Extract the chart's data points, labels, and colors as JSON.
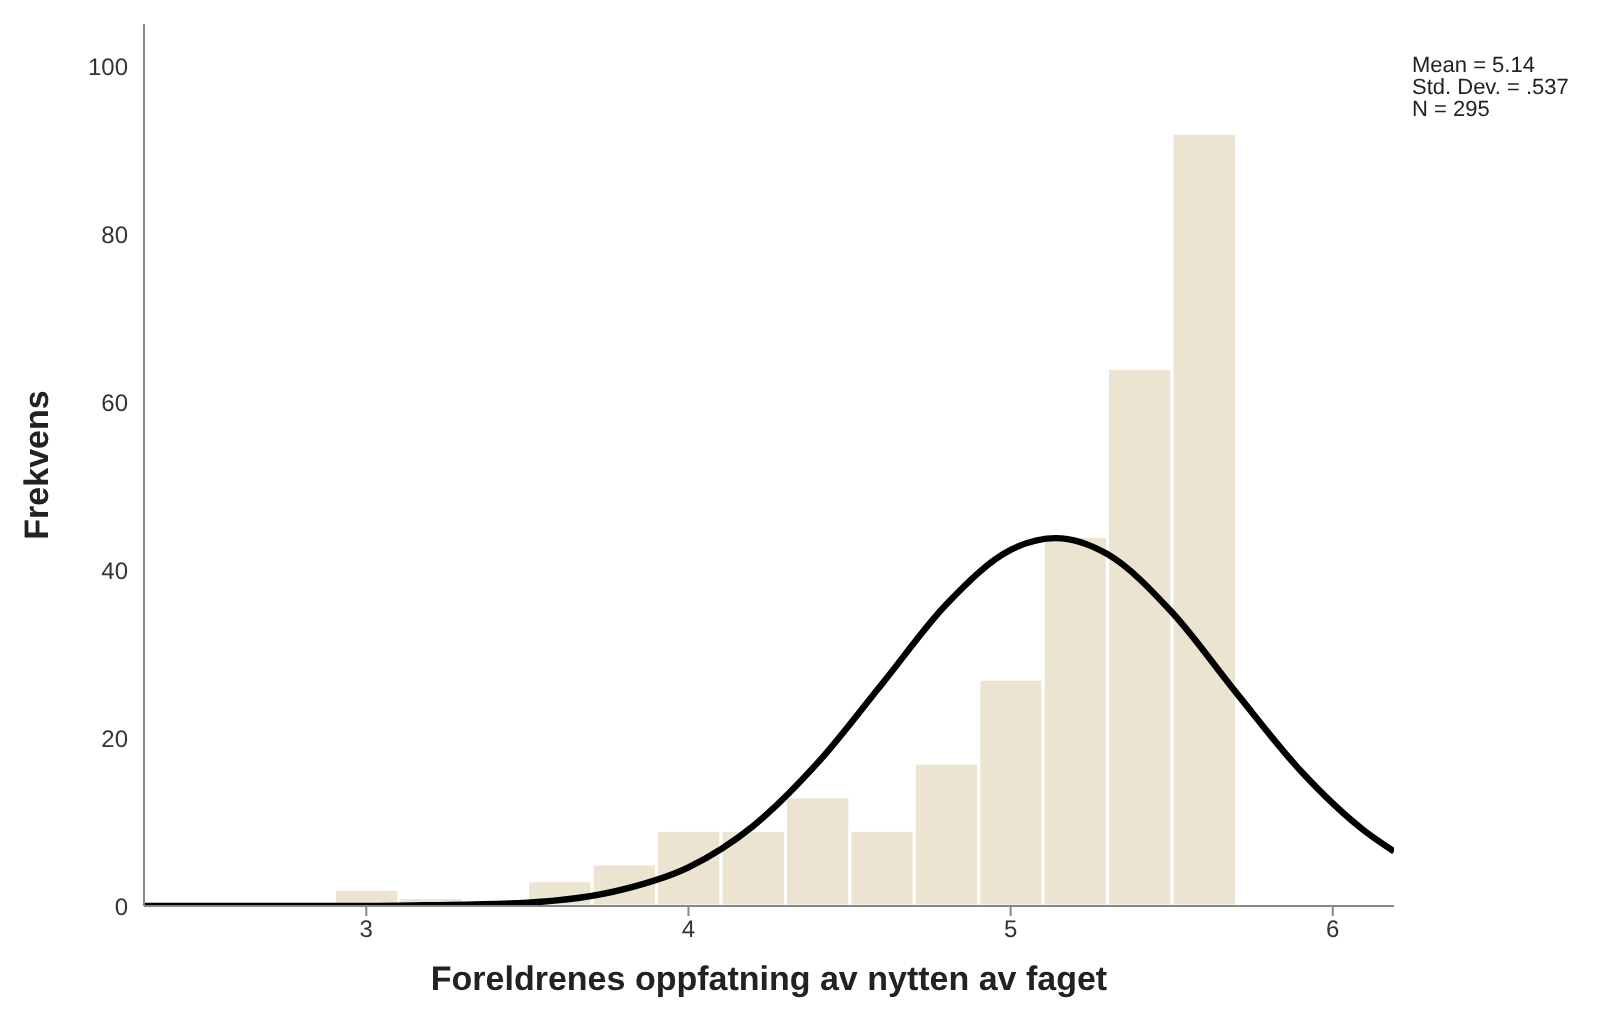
{
  "chart_data": {
    "type": "histogram",
    "xlabel": "Foreldrenes oppfatning av nytten av faget",
    "ylabel": "Frekvens",
    "bins": [
      2.9,
      3.1,
      3.3,
      3.5,
      3.7,
      3.9,
      4.1,
      4.3,
      4.5,
      4.7,
      4.9,
      5.1,
      5.3,
      5.5,
      5.7
    ],
    "values": [
      2,
      1,
      0,
      3,
      5,
      9,
      9,
      13,
      9,
      17,
      27,
      44,
      64,
      92
    ],
    "color": "#ebe4d1",
    "series": [
      {
        "type": "line",
        "color": "#000000",
        "x": [
          2.31,
          3.0,
          3.2,
          3.5,
          3.8,
          4.0,
          4.2,
          4.4,
          4.6,
          4.8,
          5.0,
          5.14,
          5.3,
          5.5,
          5.7,
          5.9,
          6.1,
          6.19
        ],
        "values": [
          0,
          0,
          0.1,
          0.4,
          2.0,
          4.6,
          9.5,
          17.0,
          26.4,
          35.9,
          42.4,
          43.8,
          41.9,
          35.0,
          25.4,
          16.1,
          8.9,
          6.5
        ]
      }
    ],
    "xlim": [
      2.31,
      6.19
    ],
    "xticks": [
      3,
      4,
      5,
      6
    ],
    "ylim": [
      0,
      105
    ],
    "yticks": [
      0,
      20,
      40,
      60,
      80,
      100
    ],
    "annotations": [
      "Mean = 5.14",
      "Std. Dev. = .537",
      "N = 295"
    ]
  }
}
